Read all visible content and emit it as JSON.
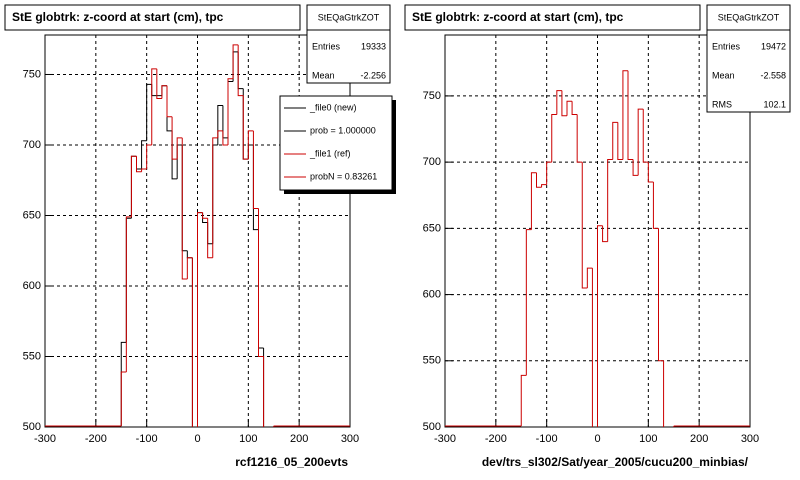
{
  "chart_data": [
    {
      "type": "histogram",
      "title": "StE globtrk: z-coord at start (cm), tpc",
      "x_label": "rcf1216_05_200evts",
      "bins": [
        -150,
        -140,
        -130,
        -120,
        -110,
        -100,
        -90,
        -80,
        -70,
        -60,
        -50,
        -40,
        -30,
        -20,
        -10,
        0,
        10,
        20,
        30,
        40,
        50,
        60,
        70,
        80,
        90,
        100,
        110,
        120,
        130,
        140,
        150
      ],
      "series": [
        {
          "name": "_file0 (new)",
          "note": "prob = 1.000000",
          "color": "#000000",
          "values": [
            560,
            648,
            692,
            683,
            703,
            743,
            735,
            735,
            742,
            710,
            676,
            700,
            625,
            620,
            480,
            652,
            645,
            630,
            700,
            728,
            705,
            745,
            766,
            740,
            690,
            700,
            640,
            556,
            480,
            480
          ]
        },
        {
          "name": "_file1 (ref)",
          "note": "probN = 0.83261",
          "color": "#cc0000",
          "values": [
            539,
            649,
            692,
            681,
            683,
            700,
            754,
            733,
            742,
            720,
            690,
            705,
            605,
            620,
            480,
            652,
            648,
            620,
            705,
            710,
            700,
            747,
            771,
            735,
            690,
            710,
            655,
            550,
            480,
            480
          ]
        }
      ],
      "xlim": [
        -300,
        300
      ],
      "ylim": [
        500,
        778
      ],
      "xticks": [
        -300,
        -200,
        -100,
        0,
        100,
        200,
        300
      ],
      "yticks": [
        500,
        550,
        600,
        650,
        700,
        750
      ],
      "grid": true,
      "stats": {
        "title": "StEQaGtrkZOT",
        "labels": [
          "Entries",
          "Mean"
        ],
        "values": [
          19333,
          -2.256
        ]
      }
    },
    {
      "type": "histogram",
      "title": "StE globtrk: z-coord at start (cm), tpc",
      "x_label": "dev/trs_sl302/Sat/year_2005/cucu200_minbias/",
      "bins": [
        -150,
        -140,
        -130,
        -120,
        -110,
        -100,
        -90,
        -80,
        -70,
        -60,
        -50,
        -40,
        -30,
        -20,
        -10,
        0,
        10,
        20,
        30,
        40,
        50,
        60,
        70,
        80,
        90,
        100,
        110,
        120,
        130,
        140,
        150
      ],
      "series": [
        {
          "color": "#cc0000",
          "values": [
            539,
            649,
            692,
            681,
            683,
            700,
            736,
            754,
            735,
            746,
            736,
            700,
            605,
            620,
            480,
            652,
            640,
            702,
            730,
            702,
            769,
            702,
            690,
            740,
            700,
            685,
            650,
            550,
            480,
            480
          ]
        }
      ],
      "xlim": [
        -300,
        300
      ],
      "ylim": [
        500,
        796
      ],
      "xticks": [
        -300,
        -200,
        -100,
        0,
        100,
        200,
        300
      ],
      "yticks": [
        500,
        550,
        600,
        650,
        700,
        750
      ],
      "grid": true,
      "stats": {
        "title": "StEQaGtrkZOT",
        "labels": [
          "Entries",
          "Mean",
          "RMS"
        ],
        "values": [
          19472,
          -2.558,
          102.1
        ]
      }
    }
  ]
}
